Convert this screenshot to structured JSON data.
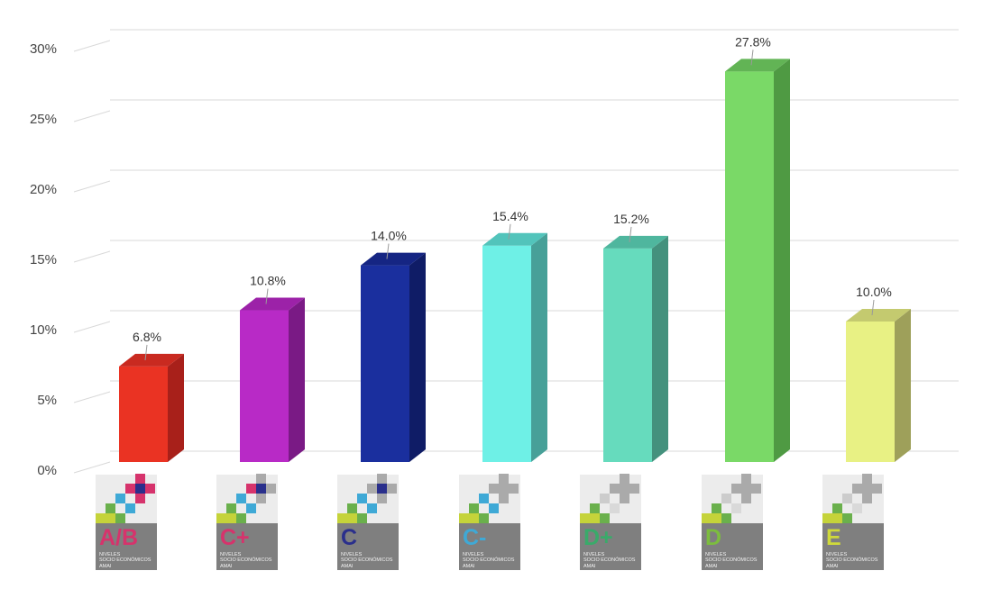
{
  "chart_data": {
    "type": "bar",
    "style": "3d-columns",
    "categories": [
      "A/B",
      "C+",
      "C",
      "C-",
      "D+",
      "D",
      "E"
    ],
    "values": [
      6.8,
      10.8,
      14.0,
      15.4,
      15.2,
      27.8,
      10.0
    ],
    "value_labels": [
      "6.8%",
      "10.8%",
      "14.0%",
      "15.4%",
      "15.2%",
      "27.8%",
      "10.0%"
    ],
    "colors": [
      "#ea3323",
      "#b82ac6",
      "#1a2f9e",
      "#6ef0e6",
      "#66dbbd",
      "#7ad967",
      "#e8f184"
    ],
    "side_colors": [
      "#a8201a",
      "#7a1a85",
      "#0f1c66",
      "#47a098",
      "#44917d",
      "#4f9a43",
      "#9ea05a"
    ],
    "top_colors": [
      "#c92a20",
      "#9c22a8",
      "#152583",
      "#52c4bb",
      "#4fb69e",
      "#62b455",
      "#c4ca6f"
    ],
    "ylim": [
      0,
      30
    ],
    "yticks": [
      "0%",
      "5%",
      "10%",
      "15%",
      "20%",
      "25%",
      "30%"
    ],
    "grid": true,
    "title": "",
    "xlabel": "",
    "ylabel": ""
  },
  "logos": {
    "subtitle_line1": "NIVELES",
    "subtitle_line2": "SOCIO ECONÓMICOS",
    "subtitle_line3": "AMAI",
    "letter_colors": [
      "#d6336c",
      "#d6336c",
      "#2a2f8c",
      "#3fa9d6",
      "#3aaa6a",
      "#7cbd3e",
      "#cfd93a"
    ]
  }
}
